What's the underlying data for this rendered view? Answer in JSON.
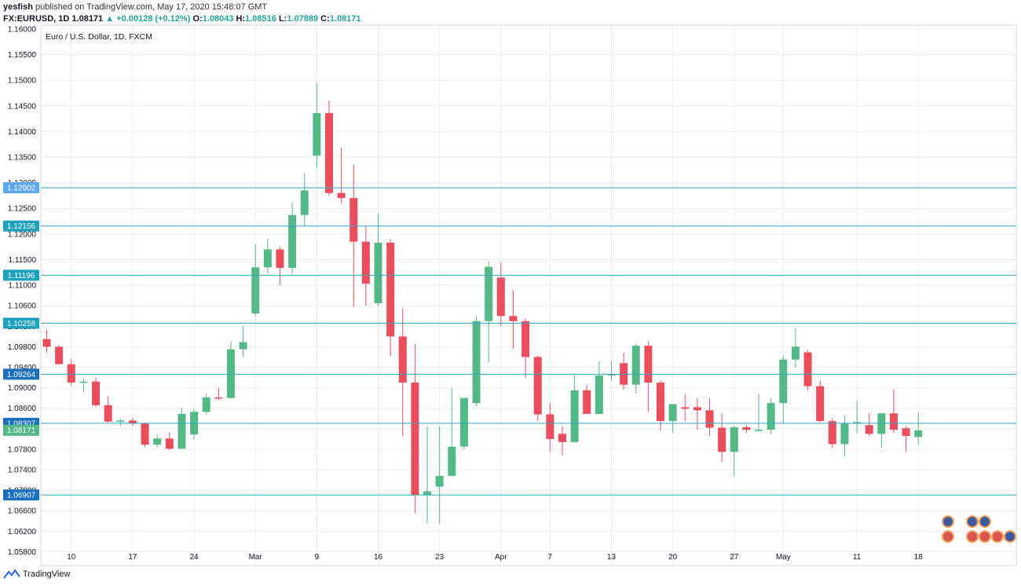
{
  "header": {
    "author": "yesfish",
    "published": "published on TradingView.com, May 17, 2020 15:48:07 GMT",
    "symbol": "FX:EURUSD, 1D",
    "last": "1.08171",
    "change": "▲ +0.00128 (+0.12%)",
    "o_label": "O:",
    "o": "1.08043",
    "h_label": "H:",
    "h": "1.08516",
    "l_label": "L:",
    "l": "1.07889",
    "c_label": "C:",
    "c": "1.08171"
  },
  "footer": {
    "brand": "TradingView"
  },
  "colors": {
    "up": "#53b987",
    "down": "#eb4d5c",
    "level_line": "#31a6c3",
    "level_label": "#1ea0bf",
    "grid": "#e9edf2"
  },
  "chart_data": {
    "type": "candlestick",
    "title": "Euro / U.S. Dollar, 1D, FXCM",
    "ylim": [
      1.0553,
      1.16075
    ],
    "yticks": [
      "1.16000",
      "1.15500",
      "1.15000",
      "1.14500",
      "1.14000",
      "1.13500",
      "1.13000",
      "1.12500",
      "1.12000",
      "1.11500",
      "1.11000",
      "1.10600",
      "1.10200",
      "1.09800",
      "1.09400",
      "1.09000",
      "1.08600",
      "1.08200",
      "1.07800",
      "1.07400",
      "1.07000",
      "1.06600",
      "1.06200",
      "1.05800"
    ],
    "xticks": [
      {
        "label": "10",
        "i": 2
      },
      {
        "label": "17",
        "i": 7
      },
      {
        "label": "24",
        "i": 12
      },
      {
        "label": "Mar",
        "i": 17
      },
      {
        "label": "9",
        "i": 22
      },
      {
        "label": "16",
        "i": 27
      },
      {
        "label": "23",
        "i": 32
      },
      {
        "label": "Apr",
        "i": 37
      },
      {
        "label": "7",
        "i": 41
      },
      {
        "label": "13",
        "i": 46
      },
      {
        "label": "20",
        "i": 51
      },
      {
        "label": "27",
        "i": 56
      },
      {
        "label": "May",
        "i": 60
      },
      {
        "label": "11",
        "i": 66
      },
      {
        "label": "18",
        "i": 71
      }
    ],
    "levels": [
      {
        "value": 1.12902,
        "label": "1.12902",
        "color": "#5aa9f0"
      },
      {
        "value": 1.12156,
        "label": "1.12156",
        "color": "#1ea0bf"
      },
      {
        "value": 1.11196,
        "label": "1.11196",
        "color": "#1ea0bf"
      },
      {
        "value": 1.10258,
        "label": "1.10258",
        "color": "#1ea0bf"
      },
      {
        "value": 1.09264,
        "label": "1.09264",
        "color": "#1a6fbf"
      },
      {
        "value": 1.08307,
        "label": "1.08307",
        "color": "#1a6fbf"
      },
      {
        "value": 1.08171,
        "label": "1.08171",
        "color": "#53b987",
        "current": true
      },
      {
        "value": 1.06907,
        "label": "1.06907",
        "color": "#1a6fbf"
      }
    ],
    "candles": [
      {
        "o": 1.0995,
        "h": 1.1013,
        "l": 1.0968,
        "c": 1.098
      },
      {
        "o": 1.098,
        "h": 1.0983,
        "l": 1.0946,
        "c": 1.0946
      },
      {
        "o": 1.0946,
        "h": 1.0956,
        "l": 1.0905,
        "c": 1.091
      },
      {
        "o": 1.091,
        "h": 1.0918,
        "l": 1.0892,
        "c": 1.0912
      },
      {
        "o": 1.0912,
        "h": 1.092,
        "l": 1.0862,
        "c": 1.0866
      },
      {
        "o": 1.0866,
        "h": 1.0883,
        "l": 1.0832,
        "c": 1.0834
      },
      {
        "o": 1.0834,
        "h": 1.0839,
        "l": 1.0826,
        "c": 1.0836
      },
      {
        "o": 1.0836,
        "h": 1.0841,
        "l": 1.0826,
        "c": 1.083
      },
      {
        "o": 1.083,
        "h": 1.0831,
        "l": 1.0784,
        "c": 1.0789
      },
      {
        "o": 1.0789,
        "h": 1.0808,
        "l": 1.0784,
        "c": 1.0801
      },
      {
        "o": 1.0801,
        "h": 1.0813,
        "l": 1.0778,
        "c": 1.0781
      },
      {
        "o": 1.0781,
        "h": 1.0861,
        "l": 1.0781,
        "c": 1.0849
      },
      {
        "o": 1.0809,
        "h": 1.0858,
        "l": 1.0799,
        "c": 1.0853
      },
      {
        "o": 1.0853,
        "h": 1.0887,
        "l": 1.0848,
        "c": 1.0881
      },
      {
        "o": 1.0881,
        "h": 1.09,
        "l": 1.0876,
        "c": 1.088
      },
      {
        "o": 1.088,
        "h": 1.099,
        "l": 1.0878,
        "c": 1.0975
      },
      {
        "o": 1.0975,
        "h": 1.102,
        "l": 1.096,
        "c": 1.0989
      },
      {
        "o": 1.1045,
        "h": 1.118,
        "l": 1.104,
        "c": 1.1135
      },
      {
        "o": 1.1135,
        "h": 1.119,
        "l": 1.1123,
        "c": 1.117
      },
      {
        "o": 1.117,
        "h": 1.1176,
        "l": 1.11,
        "c": 1.1134
      },
      {
        "o": 1.1134,
        "h": 1.126,
        "l": 1.1122,
        "c": 1.1237
      },
      {
        "o": 1.1237,
        "h": 1.1318,
        "l": 1.1215,
        "c": 1.1285
      },
      {
        "o": 1.1353,
        "h": 1.1495,
        "l": 1.133,
        "c": 1.1436
      },
      {
        "o": 1.1436,
        "h": 1.146,
        "l": 1.1275,
        "c": 1.128
      },
      {
        "o": 1.128,
        "h": 1.1368,
        "l": 1.126,
        "c": 1.127
      },
      {
        "o": 1.127,
        "h": 1.1335,
        "l": 1.1058,
        "c": 1.1185
      },
      {
        "o": 1.1185,
        "h": 1.1215,
        "l": 1.106,
        "c": 1.1103
      },
      {
        "o": 1.1065,
        "h": 1.124,
        "l": 1.106,
        "c": 1.1183
      },
      {
        "o": 1.1183,
        "h": 1.119,
        "l": 1.0962,
        "c": 1.1
      },
      {
        "o": 1.1,
        "h": 1.1055,
        "l": 1.0805,
        "c": 1.091
      },
      {
        "o": 1.091,
        "h": 1.0985,
        "l": 1.0655,
        "c": 1.069
      },
      {
        "o": 1.069,
        "h": 1.0825,
        "l": 1.0635,
        "c": 1.0698
      },
      {
        "o": 1.0707,
        "h": 1.0825,
        "l": 1.0635,
        "c": 1.0728
      },
      {
        "o": 1.0728,
        "h": 1.09,
        "l": 1.0727,
        "c": 1.0785
      },
      {
        "o": 1.0785,
        "h": 1.088,
        "l": 1.078,
        "c": 1.088
      },
      {
        "o": 1.087,
        "h": 1.104,
        "l": 1.0865,
        "c": 1.103
      },
      {
        "o": 1.103,
        "h": 1.1147,
        "l": 1.095,
        "c": 1.1136
      },
      {
        "o": 1.1115,
        "h": 1.1145,
        "l": 1.102,
        "c": 1.104
      },
      {
        "o": 1.104,
        "h": 1.109,
        "l": 1.0976,
        "c": 1.103
      },
      {
        "o": 1.103,
        "h": 1.1035,
        "l": 1.092,
        "c": 1.096
      },
      {
        "o": 1.096,
        "h": 1.0963,
        "l": 1.0835,
        "c": 1.0848
      },
      {
        "o": 1.0848,
        "h": 1.087,
        "l": 1.0775,
        "c": 1.08
      },
      {
        "o": 1.081,
        "h": 1.0825,
        "l": 1.0768,
        "c": 1.0794
      },
      {
        "o": 1.0794,
        "h": 1.0925,
        "l": 1.0793,
        "c": 1.0895
      },
      {
        "o": 1.0895,
        "h": 1.0906,
        "l": 1.085,
        "c": 1.0849
      },
      {
        "o": 1.0849,
        "h": 1.0952,
        "l": 1.0848,
        "c": 1.0924
      },
      {
        "o": 1.0924,
        "h": 1.0952,
        "l": 1.0913,
        "c": 1.0927
      },
      {
        "o": 1.0948,
        "h": 1.0968,
        "l": 1.0896,
        "c": 1.0906
      },
      {
        "o": 1.0906,
        "h": 1.0986,
        "l": 1.0889,
        "c": 1.0982
      },
      {
        "o": 1.0982,
        "h": 1.0992,
        "l": 1.0853,
        "c": 1.091
      },
      {
        "o": 1.091,
        "h": 1.0914,
        "l": 1.0816,
        "c": 1.0835
      },
      {
        "o": 1.0835,
        "h": 1.0868,
        "l": 1.0812,
        "c": 1.0868
      },
      {
        "o": 1.0862,
        "h": 1.0888,
        "l": 1.0835,
        "c": 1.0859
      },
      {
        "o": 1.0862,
        "h": 1.088,
        "l": 1.0818,
        "c": 1.0856
      },
      {
        "o": 1.0856,
        "h": 1.088,
        "l": 1.0806,
        "c": 1.0822
      },
      {
        "o": 1.0822,
        "h": 1.085,
        "l": 1.0755,
        "c": 1.0775
      },
      {
        "o": 1.0775,
        "h": 1.0826,
        "l": 1.0728,
        "c": 1.0823
      },
      {
        "o": 1.0823,
        "h": 1.0827,
        "l": 1.0812,
        "c": 1.0818
      },
      {
        "o": 1.0818,
        "h": 1.0888,
        "l": 1.0814,
        "c": 1.0818
      },
      {
        "o": 1.0818,
        "h": 1.088,
        "l": 1.081,
        "c": 1.087
      },
      {
        "o": 1.087,
        "h": 1.0963,
        "l": 1.083,
        "c": 1.0955
      },
      {
        "o": 1.0955,
        "h": 1.1016,
        "l": 1.0939,
        "c": 1.098
      },
      {
        "o": 1.0969,
        "h": 1.0974,
        "l": 1.0895,
        "c": 1.0903
      },
      {
        "o": 1.0903,
        "h": 1.0914,
        "l": 1.0833,
        "c": 1.0835
      },
      {
        "o": 1.0835,
        "h": 1.084,
        "l": 1.0782,
        "c": 1.079
      },
      {
        "o": 1.079,
        "h": 1.0846,
        "l": 1.0766,
        "c": 1.083
      },
      {
        "o": 1.083,
        "h": 1.0875,
        "l": 1.0811,
        "c": 1.0833
      },
      {
        "o": 1.0827,
        "h": 1.085,
        "l": 1.0806,
        "c": 1.081
      },
      {
        "o": 1.081,
        "h": 1.085,
        "l": 1.0783,
        "c": 1.085
      },
      {
        "o": 1.085,
        "h": 1.0897,
        "l": 1.0812,
        "c": 1.0818
      },
      {
        "o": 1.0821,
        "h": 1.0825,
        "l": 1.0775,
        "c": 1.0806
      },
      {
        "o": 1.0804,
        "h": 1.0852,
        "l": 1.0789,
        "c": 1.0817
      }
    ]
  }
}
